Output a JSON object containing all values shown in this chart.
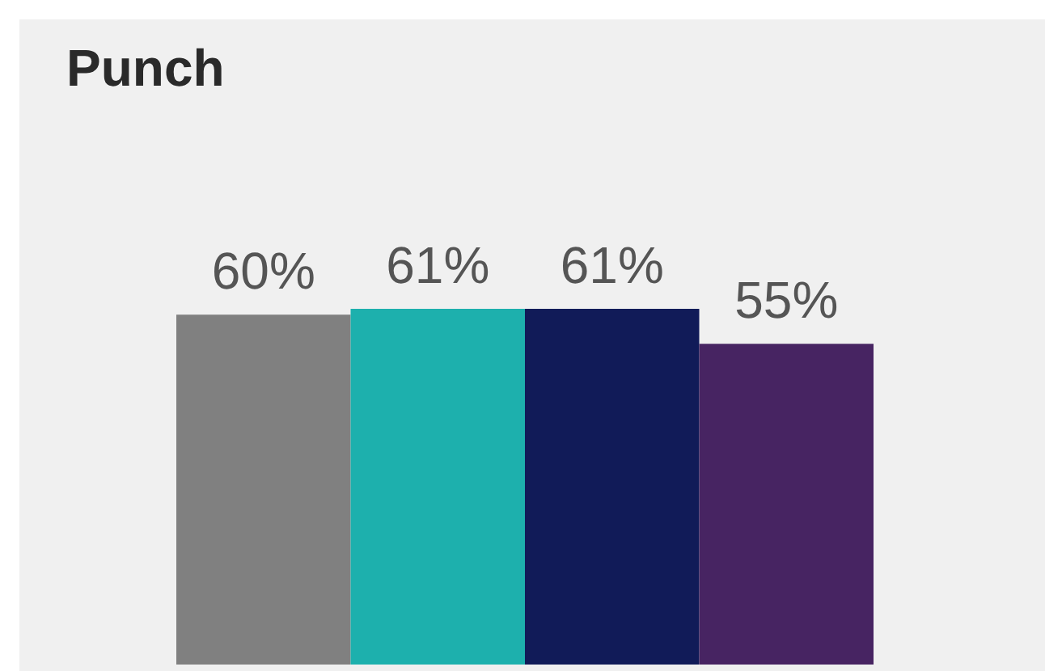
{
  "chart_data": {
    "type": "bar",
    "title": "Punch",
    "categories": [
      null,
      null,
      null,
      null
    ],
    "values": [
      60,
      61,
      61,
      55
    ],
    "colors": [
      "#808080",
      "#1db0ad",
      "#111b58",
      "#472462"
    ],
    "value_labels": [
      "60%",
      "61%",
      "61%",
      "55%"
    ]
  }
}
